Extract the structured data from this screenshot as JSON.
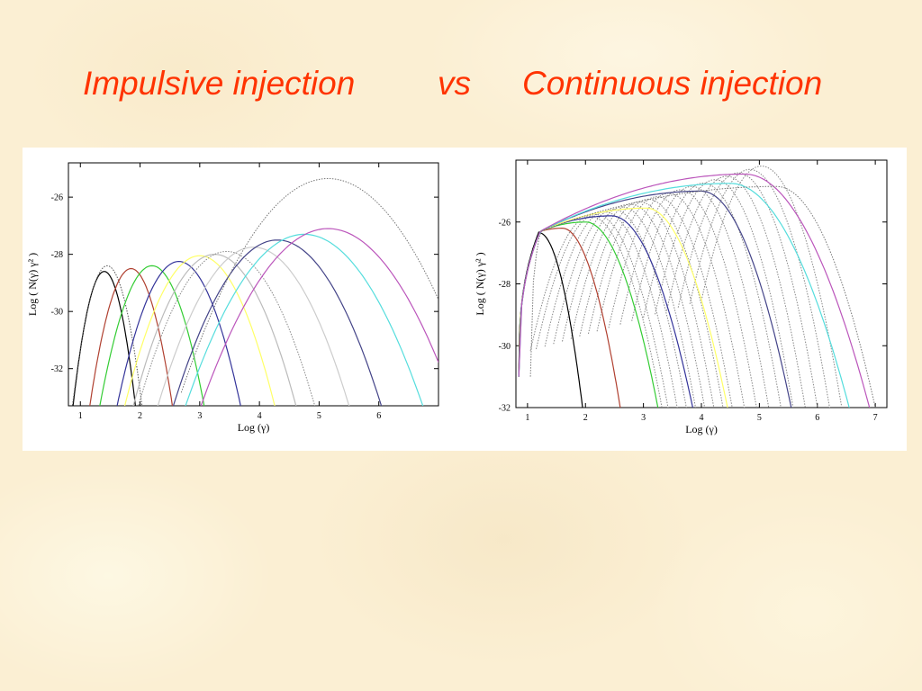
{
  "slide": {
    "title_left": "Impulsive injection",
    "title_mid": "vs",
    "title_right": "Continuous injection"
  },
  "chart_data": [
    {
      "type": "line",
      "xlabel": "Log (γ)",
      "ylabel": "Log ( N(γ) γ² )",
      "xlim": [
        0.8,
        7.0
      ],
      "ylim": [
        -33.3,
        -24.8
      ],
      "xticks": [
        1,
        2,
        3,
        4,
        5,
        6
      ],
      "yticks": [
        -26,
        -28,
        -30,
        -32
      ],
      "grid": false,
      "series": [
        {
          "color": "#000000",
          "style": "solid",
          "peak_x": 1.4,
          "peak_y": -28.6,
          "width": 0.55
        },
        {
          "color": "#555555",
          "style": "dotted",
          "peak_x": 1.45,
          "peak_y": -28.4,
          "width": 0.6
        },
        {
          "color": "#b04030",
          "style": "solid",
          "peak_x": 1.85,
          "peak_y": -28.5,
          "width": 0.72
        },
        {
          "color": "#33cc33",
          "style": "solid",
          "peak_x": 2.2,
          "peak_y": -28.4,
          "width": 0.9
        },
        {
          "color": "#333399",
          "style": "solid",
          "peak_x": 2.65,
          "peak_y": -28.25,
          "width": 1.05
        },
        {
          "color": "#ffff66",
          "style": "solid",
          "peak_x": 3.0,
          "peak_y": -28.05,
          "width": 1.25
        },
        {
          "color": "#bbbbbb",
          "style": "solid",
          "peak_x": 3.25,
          "peak_y": -28.0,
          "width": 1.35
        },
        {
          "color": "#888888",
          "style": "dotted",
          "peak_x": 3.45,
          "peak_y": -27.9,
          "width": 1.45
        },
        {
          "color": "#cccccc",
          "style": "solid",
          "peak_x": 3.9,
          "peak_y": -27.75,
          "width": 1.55
        },
        {
          "color": "#444488",
          "style": "solid",
          "peak_x": 4.3,
          "peak_y": -27.5,
          "width": 1.65
        },
        {
          "color": "#55dddd",
          "style": "solid",
          "peak_x": 4.75,
          "peak_y": -27.3,
          "width": 1.85
        },
        {
          "color": "#bb55bb",
          "style": "solid",
          "peak_x": 5.15,
          "peak_y": -27.1,
          "width": 1.95
        },
        {
          "color": "#777777",
          "style": "dotted",
          "peak_x": 5.15,
          "peak_y": -25.35,
          "width": 2.05
        }
      ]
    },
    {
      "type": "line",
      "xlabel": "Log (γ)",
      "ylabel": "Log ( N(γ) γ² )",
      "xlim": [
        0.8,
        7.2
      ],
      "ylim": [
        -32.0,
        -24.0
      ],
      "xticks": [
        1,
        2,
        3,
        4,
        5,
        6,
        7
      ],
      "yticks": [
        -26,
        -28,
        -30,
        -32
      ],
      "grid": false,
      "series": [
        {
          "color": "#000000",
          "style": "solid",
          "start_x": 0.85,
          "peak_x": 1.2,
          "peak_y": -26.35,
          "end_x": 1.95
        },
        {
          "color": "#b04030",
          "style": "solid",
          "start_x": 0.85,
          "peak_x": 1.6,
          "peak_y": -26.2,
          "end_x": 2.6
        },
        {
          "color": "#33cc33",
          "style": "solid",
          "start_x": 0.85,
          "peak_x": 2.0,
          "peak_y": -26.0,
          "end_x": 3.25
        },
        {
          "color": "#333399",
          "style": "solid",
          "start_x": 0.85,
          "peak_x": 2.45,
          "peak_y": -25.8,
          "end_x": 3.85
        },
        {
          "color": "#ffff66",
          "style": "solid",
          "start_x": 0.85,
          "peak_x": 3.05,
          "peak_y": -25.55,
          "end_x": 4.45
        },
        {
          "color": "#444488",
          "style": "solid",
          "start_x": 0.85,
          "peak_x": 4.0,
          "peak_y": -25.0,
          "end_x": 5.55
        },
        {
          "color": "#55dddd",
          "style": "solid",
          "start_x": 0.85,
          "peak_x": 4.5,
          "peak_y": -24.75,
          "end_x": 6.55
        },
        {
          "color": "#bb55bb",
          "style": "solid",
          "start_x": 0.85,
          "peak_x": 4.75,
          "peak_y": -24.45,
          "end_x": 6.9
        },
        {
          "color": "#777777",
          "style": "dotted",
          "start_x": 1.05,
          "peak_x": 5.3,
          "peak_y": -24.85,
          "end_x": 7.0
        }
      ],
      "dotted_bundle": {
        "color": "#888888",
        "start_x": [
          1.05,
          1.15,
          1.3,
          1.45,
          1.6,
          1.75,
          1.9,
          2.05,
          2.2,
          2.4,
          2.6,
          2.8,
          3.0,
          3.2,
          3.4,
          3.6,
          3.8,
          4.0
        ],
        "width": 2.3
      }
    }
  ]
}
